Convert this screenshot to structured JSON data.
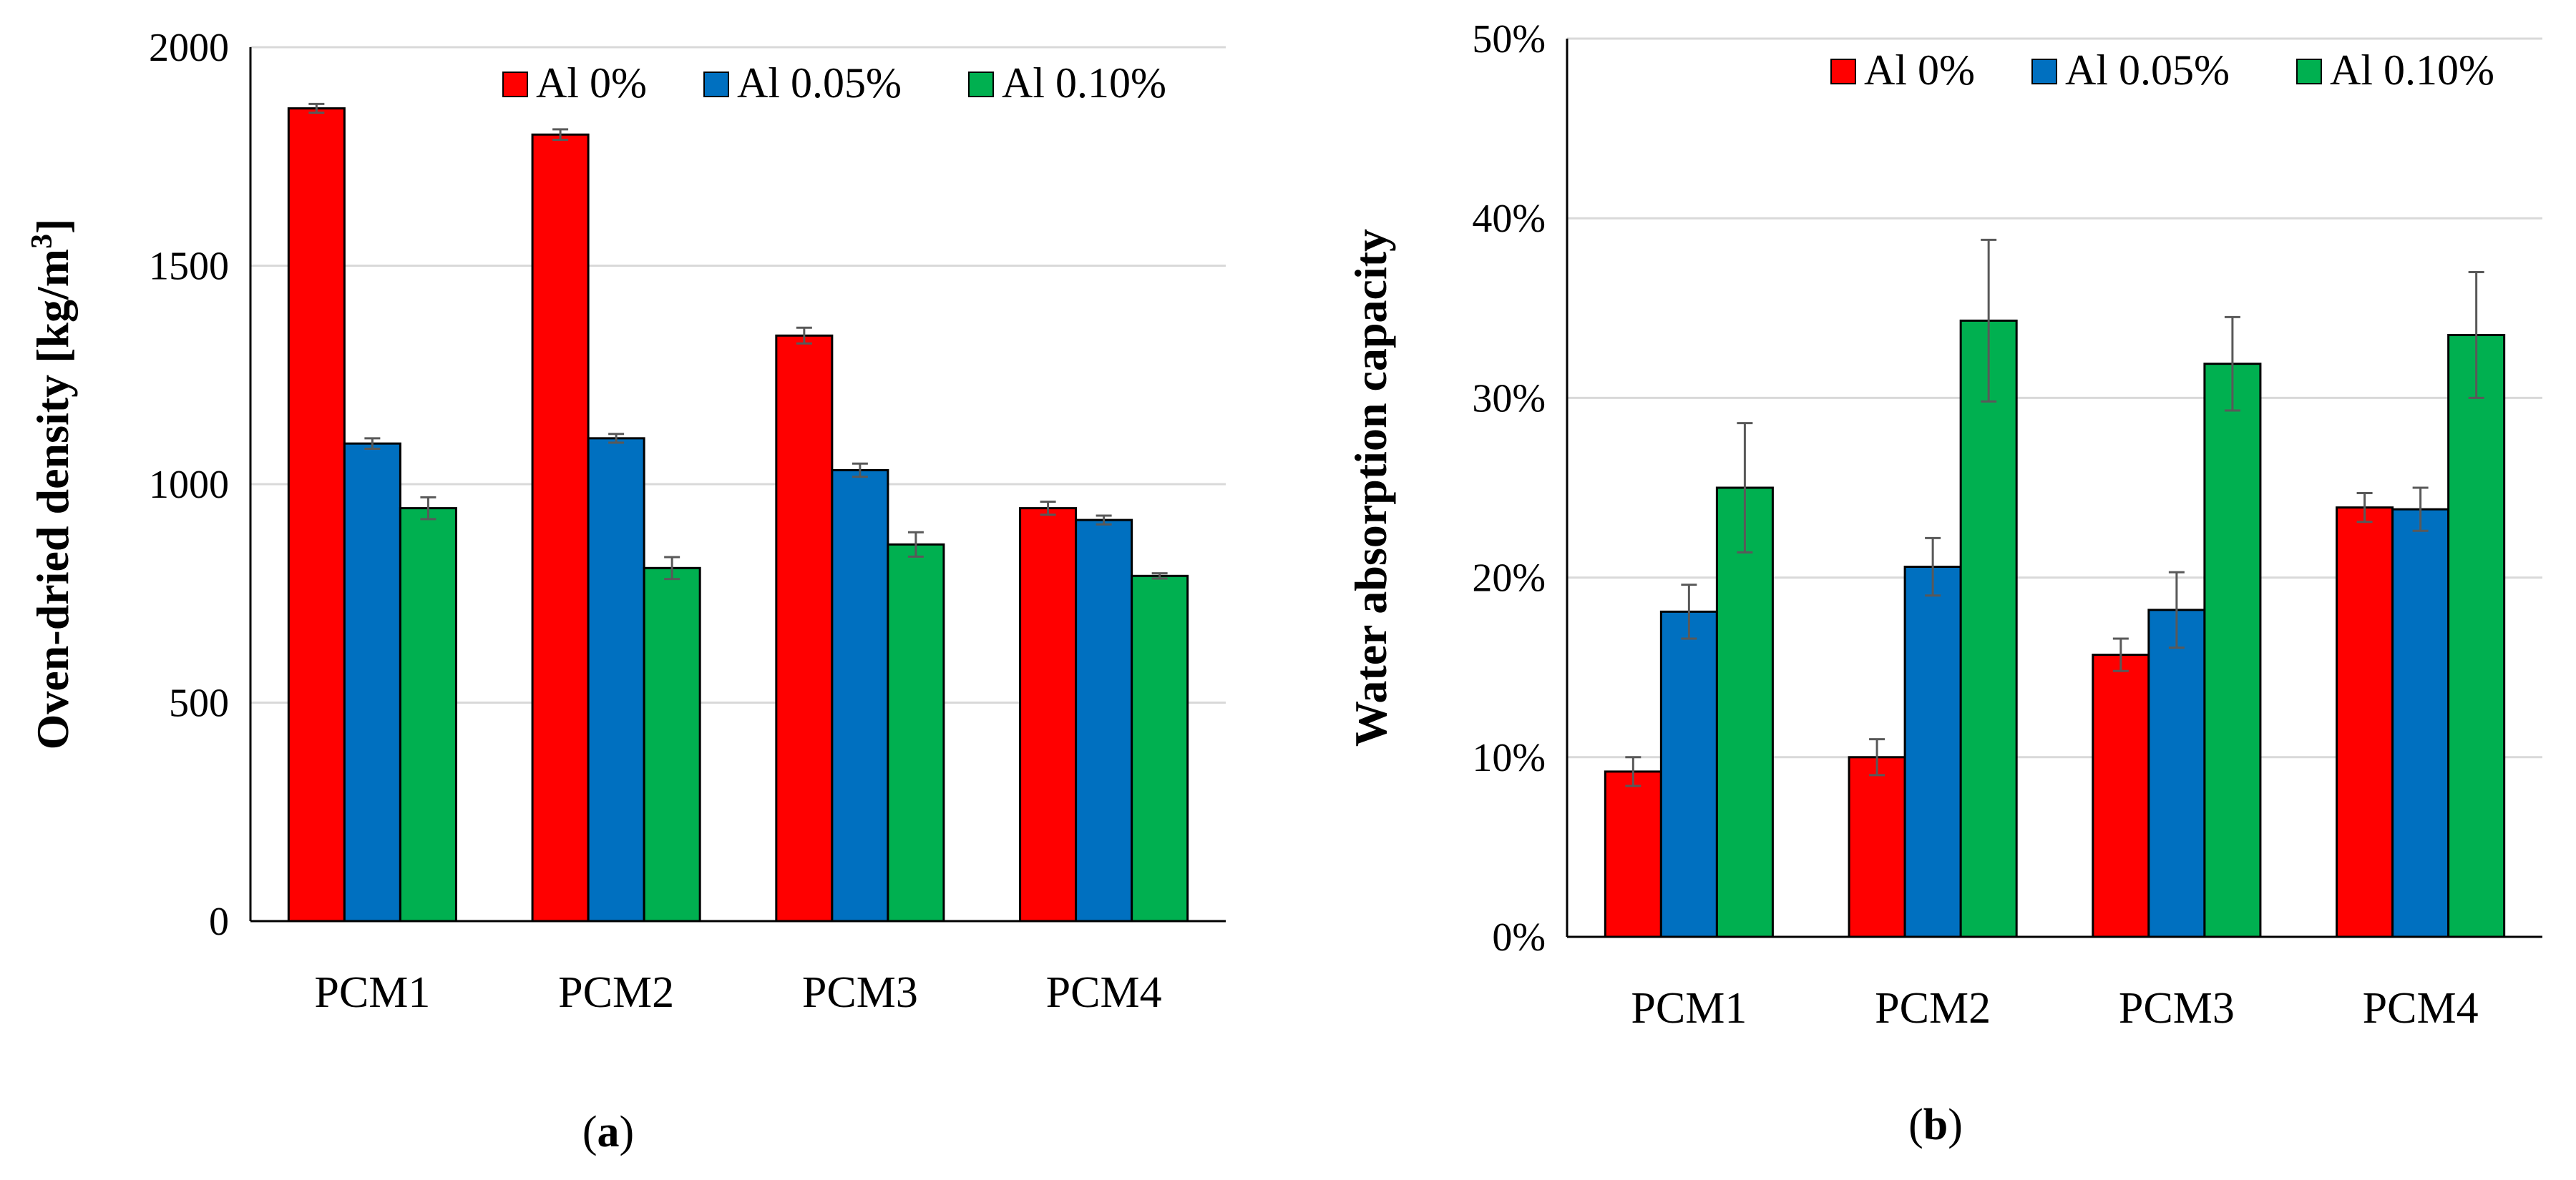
{
  "chart_data": [
    {
      "type": "bar",
      "panel_label": "a",
      "title": "",
      "xlabel": "",
      "ylabel": "Oven-dried density [kg/m",
      "ylabel_sup": "3",
      "ylabel_end": "]",
      "ylim": [
        0,
        2000
      ],
      "yticks": [
        "0",
        "500",
        "1000",
        "1500",
        "2000"
      ],
      "ytick_values": [
        0,
        500,
        1000,
        1500,
        2000
      ],
      "grid": true,
      "legend_position": "top-right",
      "categories": [
        "PCM1",
        "PCM2",
        "PCM3",
        "PCM4"
      ],
      "series": [
        {
          "name": "Al 0%",
          "color": "#ff0000",
          "values": [
            1860,
            1800,
            1340,
            945
          ],
          "errors": [
            10,
            12,
            18,
            15
          ]
        },
        {
          "name": "Al 0.05%",
          "color": "#0070c0",
          "values": [
            1093,
            1105,
            1032,
            918
          ],
          "errors": [
            12,
            10,
            15,
            10
          ]
        },
        {
          "name": "Al 0.10%",
          "color": "#00b050",
          "values": [
            945,
            808,
            862,
            790
          ],
          "errors": [
            25,
            25,
            28,
            6
          ]
        }
      ]
    },
    {
      "type": "bar",
      "panel_label": "b",
      "title": "",
      "xlabel": "",
      "ylabel": "Water absorption capacity",
      "ylim": [
        0,
        50
      ],
      "yticks": [
        "0%",
        "10%",
        "20%",
        "30%",
        "40%",
        "50%"
      ],
      "ytick_values": [
        0,
        10,
        20,
        30,
        40,
        50
      ],
      "grid": true,
      "legend_position": "top-right",
      "categories": [
        "PCM1",
        "PCM2",
        "PCM3",
        "PCM4"
      ],
      "series": [
        {
          "name": "Al 0%",
          "color": "#ff0000",
          "values": [
            9.2,
            10.0,
            15.7,
            23.9
          ],
          "errors": [
            0.8,
            1.0,
            0.9,
            0.8
          ]
        },
        {
          "name": "Al 0.05%",
          "color": "#0070c0",
          "values": [
            18.1,
            20.6,
            18.2,
            23.8
          ],
          "errors": [
            1.5,
            1.6,
            2.1,
            1.2
          ]
        },
        {
          "name": "Al 0.10%",
          "color": "#00b050",
          "values": [
            25.0,
            34.3,
            31.9,
            33.5
          ],
          "errors": [
            3.6,
            4.5,
            2.6,
            3.5
          ]
        }
      ]
    }
  ]
}
